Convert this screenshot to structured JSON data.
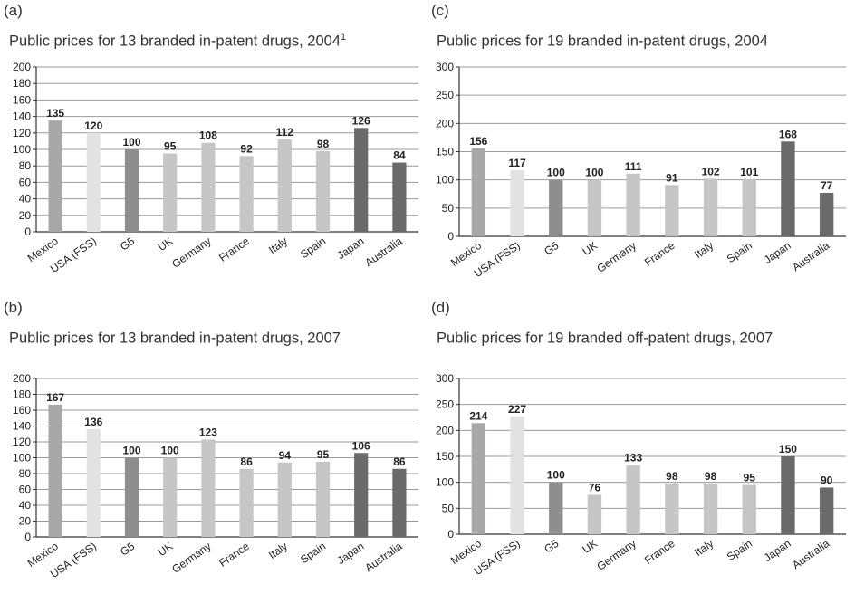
{
  "colors": {
    "Mexico": "#a8a8a8",
    "USA (FSS)": "#e2e2e2",
    "G5": "#8e8e8e",
    "UK": "#c6c6c6",
    "Germany": "#c6c6c6",
    "France": "#c6c6c6",
    "Italy": "#c6c6c6",
    "Spain": "#c6c6c6",
    "Japan": "#6a6a6a",
    "Australia": "#6a6a6a",
    "gridline": "#9a9a9a",
    "axis": "#333333"
  },
  "panels": [
    {
      "letter": "(a)",
      "title": "Public prices for 13 branded in-patent drugs, 2004",
      "title_sup": "1",
      "chart_data": {
        "type": "bar",
        "title": "Public prices for 13 branded in-patent drugs, 2004",
        "categories": [
          "Mexico",
          "USA (FSS)",
          "G5",
          "UK",
          "Germany",
          "France",
          "Italy",
          "Spain",
          "Japan",
          "Australia"
        ],
        "values": [
          135,
          120,
          100,
          95,
          108,
          92,
          112,
          98,
          126,
          84
        ],
        "ylim": [
          0,
          200
        ],
        "yticks": [
          "0",
          "20",
          "40",
          "60",
          "80",
          "100",
          "120",
          "140",
          "160",
          "180",
          "200"
        ],
        "grid": true
      }
    },
    {
      "letter": "(c)",
      "title": "Public prices for 19 branded in-patent drugs, 2004",
      "title_sup": "",
      "chart_data": {
        "type": "bar",
        "title": "Public prices for 19 branded in-patent drugs, 2004",
        "categories": [
          "Mexico",
          "USA (FSS)",
          "G5",
          "UK",
          "Germany",
          "France",
          "Italy",
          "Spain",
          "Japan",
          "Australia"
        ],
        "values": [
          156,
          117,
          100,
          100,
          111,
          91,
          102,
          101,
          168,
          77
        ],
        "ylim": [
          0,
          300
        ],
        "yticks": [
          "0",
          "50",
          "100",
          "150",
          "200",
          "250",
          "300"
        ],
        "grid": true
      }
    },
    {
      "letter": "(b)",
      "title": "Public prices for 13 branded in-patent drugs, 2007",
      "title_sup": "",
      "chart_data": {
        "type": "bar",
        "title": "Public prices for 13 branded in-patent drugs, 2007",
        "categories": [
          "Mexico",
          "USA (FSS)",
          "G5",
          "UK",
          "Germany",
          "France",
          "Italy",
          "Spain",
          "Japan",
          "Australia"
        ],
        "values": [
          167,
          136,
          100,
          100,
          123,
          86,
          94,
          95,
          106,
          86
        ],
        "ylim": [
          0,
          200
        ],
        "yticks": [
          "0",
          "20",
          "40",
          "60",
          "80",
          "100",
          "120",
          "140",
          "160",
          "180",
          "200"
        ],
        "grid": true
      }
    },
    {
      "letter": "(d)",
      "title": "Public prices for 19 branded off-patent drugs, 2007",
      "title_sup": "",
      "chart_data": {
        "type": "bar",
        "title": "Public prices for 19 branded off-patent drugs, 2007",
        "categories": [
          "Mexico",
          "USA (FSS)",
          "G5",
          "UK",
          "Germany",
          "France",
          "Italy",
          "Spain",
          "Japan",
          "Australia"
        ],
        "values": [
          214,
          227,
          100,
          76,
          133,
          98,
          98,
          95,
          150,
          90
        ],
        "ylim": [
          0,
          300
        ],
        "yticks": [
          "0",
          "50",
          "100",
          "150",
          "200",
          "250",
          "300"
        ],
        "grid": true
      }
    }
  ]
}
